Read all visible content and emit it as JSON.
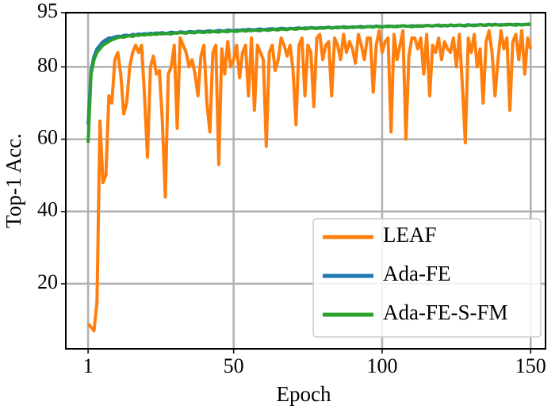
{
  "chart_data": {
    "type": "line",
    "x_label": "Epoch",
    "y_label": "Top-1 Acc.",
    "x": [
      1,
      2,
      3,
      4,
      5,
      6,
      7,
      8,
      9,
      10,
      11,
      12,
      13,
      14,
      15,
      16,
      17,
      18,
      19,
      20,
      21,
      22,
      23,
      24,
      25,
      26,
      27,
      28,
      29,
      30,
      31,
      32,
      33,
      34,
      35,
      36,
      37,
      38,
      39,
      40,
      41,
      42,
      43,
      44,
      45,
      46,
      47,
      48,
      49,
      50,
      51,
      52,
      53,
      54,
      55,
      56,
      57,
      58,
      59,
      60,
      61,
      62,
      63,
      64,
      65,
      66,
      67,
      68,
      69,
      70,
      71,
      72,
      73,
      74,
      75,
      76,
      77,
      78,
      79,
      80,
      81,
      82,
      83,
      84,
      85,
      86,
      87,
      88,
      89,
      90,
      91,
      92,
      93,
      94,
      95,
      96,
      97,
      98,
      99,
      100,
      101,
      102,
      103,
      104,
      105,
      106,
      107,
      108,
      109,
      110,
      111,
      112,
      113,
      114,
      115,
      116,
      117,
      118,
      119,
      120,
      121,
      122,
      123,
      124,
      125,
      126,
      127,
      128,
      129,
      130,
      131,
      132,
      133,
      134,
      135,
      136,
      137,
      138,
      139,
      140,
      141,
      142,
      143,
      144,
      145,
      146,
      147,
      148,
      149,
      150
    ],
    "series": [
      {
        "name": "LEAF",
        "color": "#ff7f0e",
        "values": [
          9,
          8,
          7,
          15,
          65,
          48,
          50,
          72,
          70,
          82,
          84,
          78,
          67,
          70,
          80,
          84,
          86,
          84,
          86,
          72,
          55,
          80,
          83,
          78,
          79,
          65,
          44,
          78,
          80,
          86,
          63,
          88,
          86,
          84,
          80,
          82,
          78,
          72,
          83,
          86,
          70,
          62,
          84,
          86,
          53,
          85,
          78,
          87,
          80,
          82,
          86,
          77,
          84,
          86,
          72,
          88,
          68,
          86,
          84,
          82,
          58,
          84,
          86,
          79,
          82,
          88,
          86,
          83,
          86,
          79,
          64,
          86,
          88,
          72,
          86,
          84,
          69,
          88,
          89,
          82,
          86,
          87,
          72,
          88,
          86,
          82,
          89,
          84,
          87,
          85,
          81,
          89,
          86,
          82,
          88,
          88,
          73,
          86,
          90,
          84,
          87,
          88,
          62,
          89,
          82,
          86,
          90,
          60,
          83,
          88,
          88,
          85,
          88,
          78,
          89,
          72,
          86,
          84,
          88,
          82,
          87,
          85,
          84,
          88,
          80,
          89,
          75,
          59,
          88,
          84,
          89,
          80,
          85,
          70,
          87,
          90,
          84,
          72,
          82,
          90,
          85,
          88,
          68,
          87,
          89,
          82,
          90,
          78,
          88,
          85
        ]
      },
      {
        "name": "Ada-FE",
        "color": "#1f77b4",
        "values": [
          64,
          79,
          83,
          85,
          86,
          87,
          87.5,
          88,
          88,
          88.3,
          88.5,
          88.4,
          88.7,
          88.8,
          88.6,
          89,
          88.9,
          89.1,
          89,
          89.2,
          89.1,
          89.3,
          89.2,
          89.4,
          89.3,
          89.5,
          89.2,
          89.4,
          89.6,
          89.5,
          89.4,
          89.7,
          89.6,
          89.5,
          89.8,
          89.7,
          89.6,
          89.9,
          89.8,
          89.7,
          89.9,
          90,
          89.8,
          89.9,
          90.1,
          90,
          89.9,
          90.2,
          90.1,
          90,
          90.2,
          90.1,
          90.3,
          90.2,
          90.4,
          90.3,
          90.2,
          90.4,
          90.5,
          90.3,
          90.4,
          90.5,
          90.6,
          90.4,
          90.5,
          90.7,
          90.6,
          90.5,
          90.7,
          90.6,
          90.7,
          90.8,
          90.6,
          90.8,
          90.7,
          90.9,
          90.8,
          90.7,
          90.9,
          90.8,
          90.9,
          91,
          90.8,
          90.9,
          91,
          90.9,
          91.1,
          91,
          90.9,
          91.1,
          91,
          91.1,
          91.2,
          91,
          91.1,
          91.2,
          91.1,
          91.3,
          91.2,
          91.1,
          91.2,
          91.3,
          91.2,
          91.1,
          91.3,
          91.2,
          91.4,
          91.3,
          91.2,
          91.4,
          91.3,
          91.2,
          91.4,
          91.3,
          91.5,
          91.4,
          91.3,
          91.5,
          91.4,
          91.3,
          91.5,
          91.4,
          91.6,
          91.4,
          91.5,
          91.6,
          91.4,
          91.5,
          91.7,
          91.5,
          91.6,
          91.5,
          91.7,
          91.6,
          91.5,
          91.7,
          91.6,
          91.8,
          91.6,
          91.7,
          91.6,
          91.8,
          91.7,
          91.6,
          91.8,
          91.7,
          91.6,
          91.8,
          91.7,
          91.8
        ]
      },
      {
        "name": "Ada-FE-S-FM",
        "color": "#2ca02c",
        "values": [
          59,
          78,
          82,
          84,
          85,
          86,
          86.5,
          87,
          87.5,
          87.8,
          88.1,
          88.3,
          88.2,
          88.5,
          88.6,
          88.4,
          88.8,
          88.7,
          88.9,
          88.8,
          89,
          88.9,
          89.1,
          89,
          89.2,
          89.1,
          89.3,
          89.2,
          89.1,
          89.4,
          89.3,
          89.5,
          89.4,
          89.3,
          89.6,
          89.5,
          89.4,
          89.7,
          89.6,
          89.5,
          89.7,
          89.6,
          89.8,
          89.7,
          89.6,
          89.9,
          89.8,
          89.7,
          90,
          89.9,
          89.8,
          90,
          90.1,
          89.9,
          90.1,
          90,
          90.2,
          90.1,
          90,
          90.3,
          90.2,
          90.1,
          90.4,
          90.3,
          90.2,
          90.5,
          90.4,
          90.3,
          90.6,
          90.5,
          90.4,
          90.6,
          90.7,
          90.5,
          90.6,
          90.8,
          90.7,
          90.6,
          90.8,
          90.7,
          90.8,
          90.9,
          90.7,
          90.9,
          90.8,
          91,
          90.9,
          90.8,
          91,
          90.9,
          91,
          91.1,
          90.9,
          91,
          91.2,
          91.1,
          91,
          91.2,
          91.1,
          91,
          91.2,
          91.1,
          91.3,
          91.2,
          91.1,
          91.3,
          91.4,
          91.2,
          91.3,
          91.1,
          91.3,
          91.4,
          91.2,
          91.3,
          91.5,
          91.4,
          91.3,
          91.5,
          91.6,
          91.4,
          91.5,
          91.3,
          91.6,
          91.5,
          91.4,
          91.6,
          91.5,
          91.3,
          91.6,
          91.5,
          91.4,
          91.6,
          91.7,
          91.5,
          91.6,
          91.8,
          91.5,
          91.7,
          91.6,
          91.5,
          91.7,
          91.6,
          91.8,
          91.7,
          91.5,
          91.8,
          91.6,
          91.7,
          91.8,
          91.9
        ]
      }
    ],
    "xlim": [
      -6.5,
      155
    ],
    "ylim": [
      2,
      95
    ],
    "xticks": [
      1,
      50,
      100,
      150
    ],
    "yticks": [
      20,
      40,
      60,
      80,
      95
    ],
    "grid": true,
    "legend": "lower right"
  }
}
